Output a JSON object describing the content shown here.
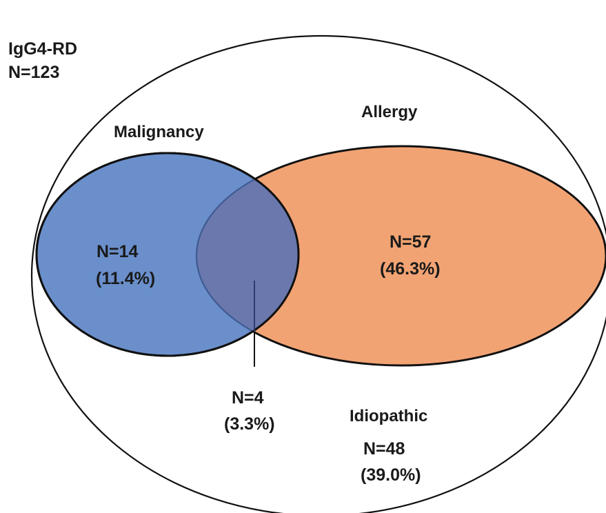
{
  "total": {
    "name": "IgG4-RD",
    "n": "N=123"
  },
  "sets": {
    "malignancy": {
      "name": "Malignancy",
      "n": "N=14",
      "pct": "(11.4%)",
      "fill": "#6a8fcb",
      "fill_opacity": 1
    },
    "allergy": {
      "name": "Allergy",
      "n": "N=57",
      "pct": "(46.3%)",
      "fill": "#f2a373",
      "fill_opacity": 1
    }
  },
  "overlap": {
    "n": "N=4",
    "pct": "(3.3%)",
    "fill": "#6a78ad"
  },
  "outside": {
    "name": "Idiopathic",
    "n": "N=48",
    "pct": "(39.0%)"
  },
  "colors": {
    "outline": "#111111",
    "leader_line": "#2d3a6e",
    "background": "#ffffff"
  }
}
